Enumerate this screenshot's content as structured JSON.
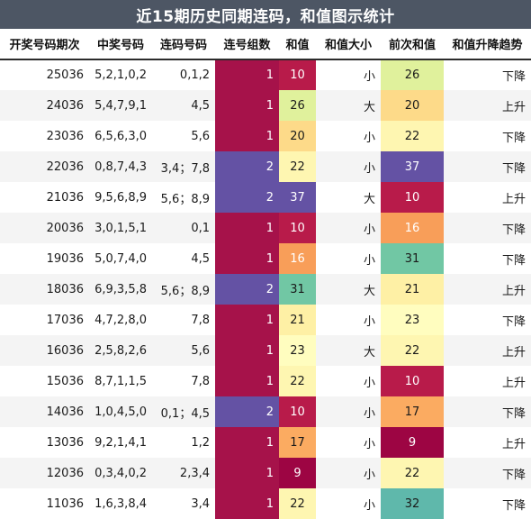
{
  "title": "近15期历史同期连码，和值图示统计",
  "headers": [
    "开奖号码期次",
    "中奖号码",
    "连码号码",
    "连号组数",
    "和值",
    "和值大小",
    "前次和值",
    "和值升降趋势"
  ],
  "colors": {
    "title_bg": "#4d5664",
    "group1": "#a6124a",
    "group2": "#6452a4",
    "sum": {
      "9": "#9d0543",
      "10": "#b81b4a",
      "16": "#f89e59",
      "17": "#fbab61",
      "20": "#fdda89",
      "21": "#fef0a5",
      "22": "#fef6b1",
      "23": "#fffdbf",
      "26": "#e0f19c",
      "31": "#71c7a4",
      "32": "#5fb8ab",
      "37": "#6452a4"
    },
    "white_text_sums": [
      9,
      10,
      16,
      37
    ]
  },
  "rows": [
    {
      "period": "25036",
      "numbers": "5,2,1,0,2",
      "consec": "0,1,2",
      "groups": "1",
      "sum": "10",
      "size": "小",
      "prev": "26",
      "trend": "下降"
    },
    {
      "period": "24036",
      "numbers": "5,4,7,9,1",
      "consec": "4,5",
      "groups": "1",
      "sum": "26",
      "size": "大",
      "prev": "20",
      "trend": "上升"
    },
    {
      "period": "23036",
      "numbers": "6,5,6,3,0",
      "consec": "5,6",
      "groups": "1",
      "sum": "20",
      "size": "小",
      "prev": "22",
      "trend": "下降"
    },
    {
      "period": "22036",
      "numbers": "0,8,7,4,3",
      "consec": "3,4；7,8",
      "groups": "2",
      "sum": "22",
      "size": "小",
      "prev": "37",
      "trend": "下降"
    },
    {
      "period": "21036",
      "numbers": "9,5,6,8,9",
      "consec": "5,6；8,9",
      "groups": "2",
      "sum": "37",
      "size": "大",
      "prev": "10",
      "trend": "上升"
    },
    {
      "period": "20036",
      "numbers": "3,0,1,5,1",
      "consec": "0,1",
      "groups": "1",
      "sum": "10",
      "size": "小",
      "prev": "16",
      "trend": "下降"
    },
    {
      "period": "19036",
      "numbers": "5,0,7,4,0",
      "consec": "4,5",
      "groups": "1",
      "sum": "16",
      "size": "小",
      "prev": "31",
      "trend": "下降"
    },
    {
      "period": "18036",
      "numbers": "6,9,3,5,8",
      "consec": "5,6；8,9",
      "groups": "2",
      "sum": "31",
      "size": "大",
      "prev": "21",
      "trend": "上升"
    },
    {
      "period": "17036",
      "numbers": "4,7,2,8,0",
      "consec": "7,8",
      "groups": "1",
      "sum": "21",
      "size": "小",
      "prev": "23",
      "trend": "下降"
    },
    {
      "period": "16036",
      "numbers": "2,5,8,2,6",
      "consec": "5,6",
      "groups": "1",
      "sum": "23",
      "size": "大",
      "prev": "22",
      "trend": "上升"
    },
    {
      "period": "15036",
      "numbers": "8,7,1,1,5",
      "consec": "7,8",
      "groups": "1",
      "sum": "22",
      "size": "小",
      "prev": "10",
      "trend": "上升"
    },
    {
      "period": "14036",
      "numbers": "1,0,4,5,0",
      "consec": "0,1；4,5",
      "groups": "2",
      "sum": "10",
      "size": "小",
      "prev": "17",
      "trend": "下降"
    },
    {
      "period": "13036",
      "numbers": "9,2,1,4,1",
      "consec": "1,2",
      "groups": "1",
      "sum": "17",
      "size": "小",
      "prev": "9",
      "trend": "上升"
    },
    {
      "period": "12036",
      "numbers": "0,3,4,0,2",
      "consec": "2,3,4",
      "groups": "1",
      "sum": "9",
      "size": "小",
      "prev": "22",
      "trend": "下降"
    },
    {
      "period": "11036",
      "numbers": "1,6,3,8,4",
      "consec": "3,4",
      "groups": "1",
      "sum": "22",
      "size": "小",
      "prev": "32",
      "trend": "下降"
    }
  ]
}
